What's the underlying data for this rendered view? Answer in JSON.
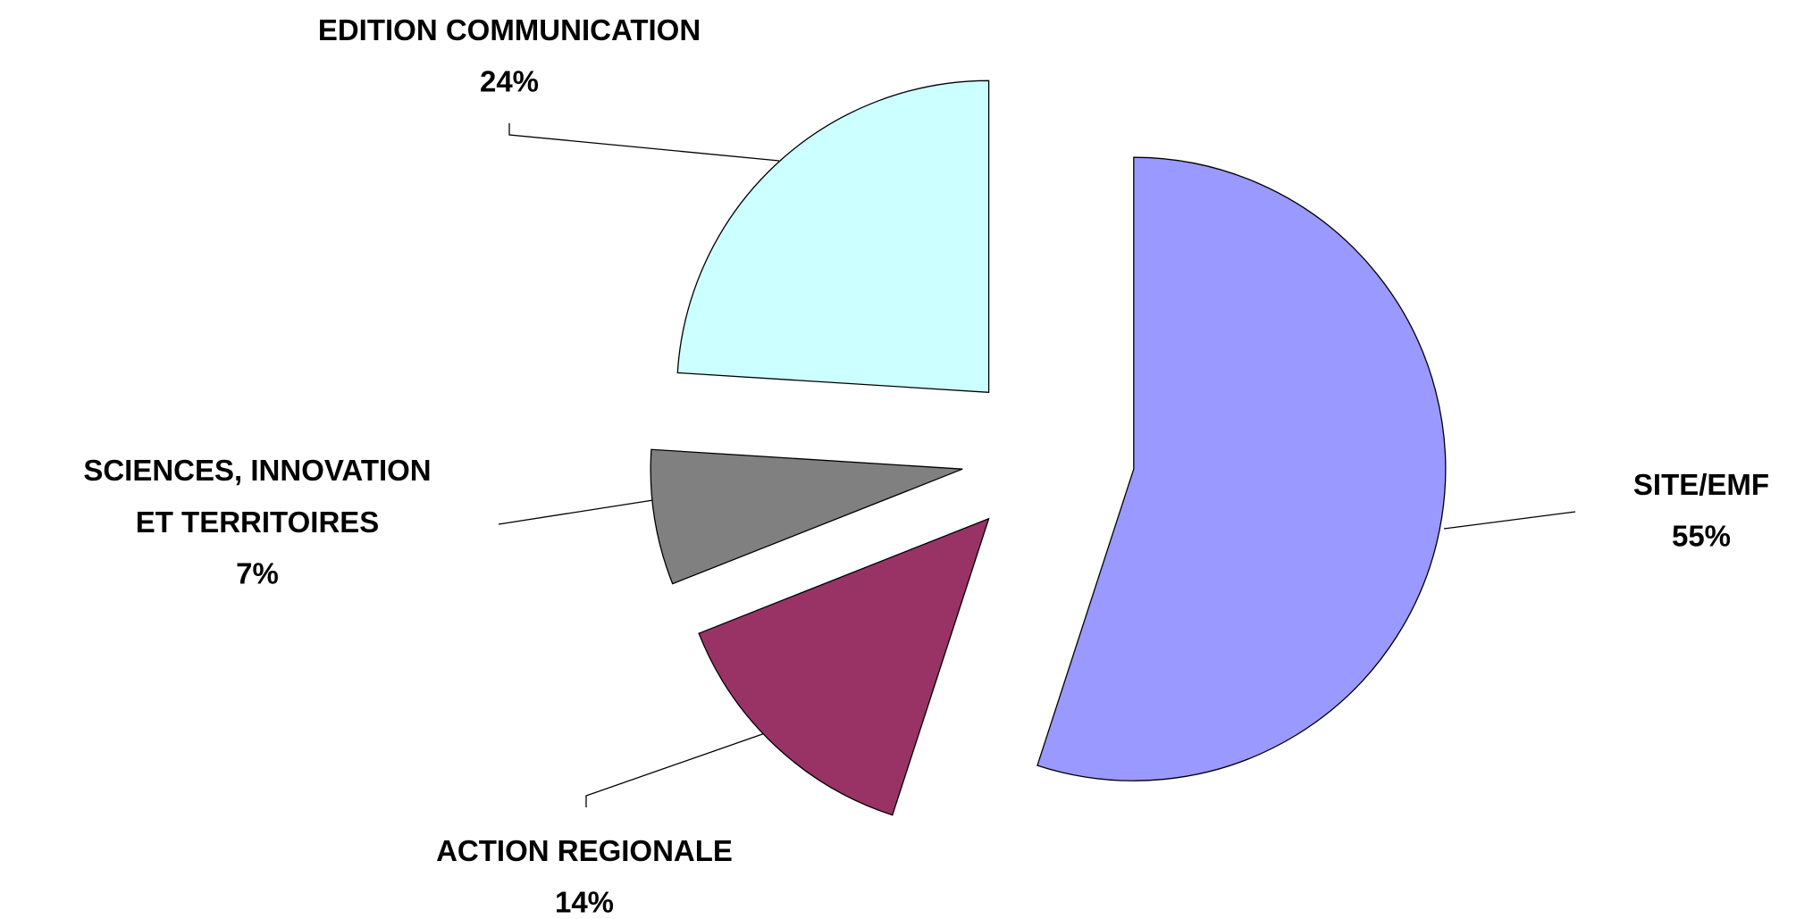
{
  "chart_data": {
    "type": "pie",
    "categories": [
      "SITE/EMF",
      "ACTION REGIONALE",
      "SCIENCES, INNOVATION\nET TERRITOIRES",
      "EDITION COMMUNICATION"
    ],
    "values": [
      55,
      14,
      7,
      24
    ],
    "value_labels": [
      "55%",
      "14%",
      "7%",
      "24%"
    ],
    "colors": [
      "#9999ff",
      "#993366",
      "#808080",
      "#ccffff"
    ],
    "exploded": true
  }
}
